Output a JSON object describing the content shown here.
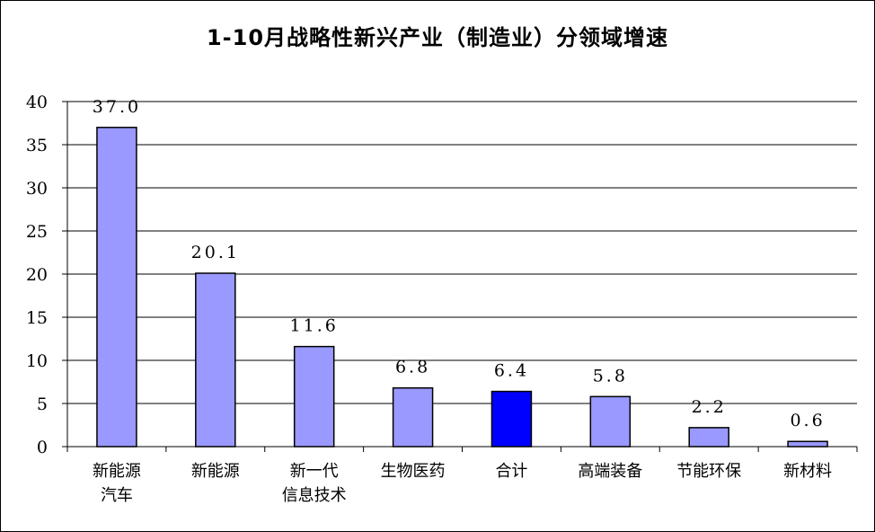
{
  "chart_data": {
    "type": "bar",
    "title": "1-10月战略性新兴产业（制造业）分领域增速",
    "xlabel": "",
    "ylabel": "",
    "ylim": [
      0,
      40
    ],
    "yticks": [
      0,
      5,
      10,
      15,
      20,
      25,
      30,
      35,
      40
    ],
    "grid": true,
    "legend": "none",
    "categories": [
      [
        "新能源",
        "汽车"
      ],
      [
        "新能源"
      ],
      [
        "新一代",
        "信息技术"
      ],
      [
        "生物医药"
      ],
      [
        "合计"
      ],
      [
        "高端装备"
      ],
      [
        "节能环保"
      ],
      [
        "新材料"
      ]
    ],
    "values": [
      37.0,
      20.1,
      11.6,
      6.8,
      6.4,
      5.8,
      2.2,
      0.6
    ],
    "data_labels": [
      "37.0",
      "20.1",
      "11.6",
      "6.8",
      "6.4",
      "5.8",
      "2.2",
      "0.6"
    ],
    "colors": {
      "bar": "#9999FF",
      "highlight": "#0000FF",
      "highlight_category": "合计",
      "grid": "#000000",
      "outline": "#000000"
    }
  }
}
